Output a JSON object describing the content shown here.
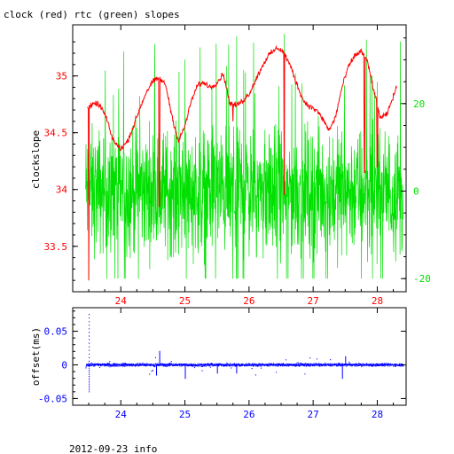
{
  "title": "clock (red) rtc (green) slopes",
  "footer": "2012-09-23 info",
  "colors": {
    "red": "#ff0000",
    "green": "#00e000",
    "blue": "#0000ff",
    "axis": "#000000"
  },
  "chart_data": [
    {
      "type": "line",
      "ylabel": "clockslope",
      "xlim": [
        23.25,
        28.45
      ],
      "ylim": [
        33.1,
        35.45
      ],
      "y2lim": [
        -23,
        38
      ],
      "x_ticks": [
        24,
        25,
        26,
        27,
        28
      ],
      "x_tick_labels": [
        "24",
        "25",
        "26",
        "27",
        "28"
      ],
      "y_ticks": [
        33.5,
        34,
        34.5,
        35
      ],
      "y_tick_labels": [
        "33.5",
        "34",
        "34.5",
        "35"
      ],
      "y2_ticks": [
        -20,
        0,
        20
      ],
      "y2_tick_labels": [
        "-20",
        "0",
        "20"
      ],
      "series": [
        {
          "color": "red",
          "axis": "left",
          "x": [
            23.48,
            23.55,
            23.62,
            23.7,
            23.78,
            23.85,
            23.92,
            24.0,
            24.1,
            24.2,
            24.3,
            24.4,
            24.5,
            24.6,
            24.7,
            24.8,
            24.9,
            25.0,
            25.1,
            25.2,
            25.3,
            25.4,
            25.5,
            25.6,
            25.7,
            25.8,
            25.9,
            26.0,
            26.1,
            26.2,
            26.3,
            26.45,
            26.55,
            26.65,
            26.75,
            26.85,
            26.95,
            27.05,
            27.15,
            27.25,
            27.35,
            27.45,
            27.55,
            27.65,
            27.75,
            27.85,
            27.95,
            28.05,
            28.15,
            28.3
          ],
          "y": [
            34.72,
            34.74,
            34.76,
            34.72,
            34.62,
            34.48,
            34.4,
            34.36,
            34.42,
            34.56,
            34.72,
            34.86,
            34.95,
            34.98,
            34.92,
            34.64,
            34.42,
            34.56,
            34.78,
            34.92,
            34.94,
            34.9,
            34.94,
            35.02,
            34.76,
            34.74,
            34.78,
            34.84,
            34.96,
            35.08,
            35.18,
            35.25,
            35.2,
            35.08,
            34.92,
            34.78,
            34.73,
            34.7,
            34.62,
            34.52,
            34.64,
            34.9,
            35.08,
            35.18,
            35.22,
            35.12,
            34.86,
            34.63,
            34.66,
            34.9
          ]
        },
        {
          "color": "green",
          "axis": "right",
          "x": [
            23.45,
            28.4
          ],
          "y_center": [
            0,
            0
          ],
          "y_spread": [
            13,
            13
          ],
          "y_min": -20,
          "y_max": 36
        }
      ]
    },
    {
      "type": "scatter",
      "ylabel": "offset(ms)",
      "xlim": [
        23.25,
        28.45
      ],
      "ylim": [
        -0.06,
        0.085
      ],
      "x_ticks": [
        24,
        25,
        26,
        27,
        28
      ],
      "x_tick_labels": [
        "24",
        "25",
        "26",
        "27",
        "28"
      ],
      "y_ticks": [
        -0.05,
        0,
        0.05
      ],
      "y_tick_labels": [
        "-0.05",
        "0",
        "0.05"
      ],
      "series": [
        {
          "color": "blue",
          "x": [
            23.45,
            28.4
          ],
          "y_center": [
            0,
            0
          ],
          "y_spread": [
            0.003,
            0.003
          ]
        }
      ]
    }
  ]
}
